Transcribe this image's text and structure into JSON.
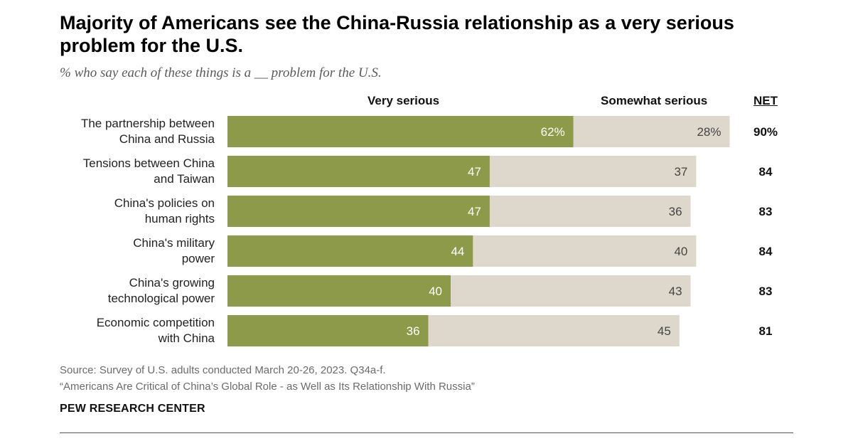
{
  "title": "Majority of Americans see the China-Russia relationship as a very serious problem for the U.S.",
  "subtitle": "% who say each of these things is a __ problem for the U.S.",
  "colors": {
    "very": "#8c9a4a",
    "somewhat": "#ddd8cb"
  },
  "chart_data": {
    "type": "bar",
    "orientation": "horizontal",
    "stacked": true,
    "categories": [
      [
        "The partnership between",
        "China and Russia"
      ],
      [
        "Tensions between China",
        "and Taiwan"
      ],
      [
        "China's policies on",
        "human rights"
      ],
      [
        "China's military",
        "power"
      ],
      [
        "China's growing",
        "technological power"
      ],
      [
        "Economic competition",
        "with China"
      ]
    ],
    "series": [
      {
        "name": "Very serious",
        "values": [
          62,
          47,
          47,
          44,
          40,
          36
        ],
        "labels": [
          "62%",
          "47",
          "47",
          "44",
          "40",
          "36"
        ]
      },
      {
        "name": "Somewhat serious",
        "values": [
          28,
          37,
          36,
          40,
          43,
          45
        ],
        "labels": [
          "28%",
          "37",
          "36",
          "40",
          "43",
          "45"
        ]
      }
    ],
    "net": {
      "name": "NET",
      "values": [
        90,
        84,
        83,
        84,
        83,
        81
      ],
      "labels": [
        "90%",
        "84",
        "83",
        "84",
        "83",
        "81"
      ]
    },
    "xlim": [
      0,
      100
    ]
  },
  "source": "Source: Survey of U.S. adults conducted March 20-26, 2023. Q34a-f.",
  "report": "“Americans Are Critical of China’s Global Role - as Well as Its Relationship With Russia”",
  "brand": "PEW RESEARCH CENTER"
}
